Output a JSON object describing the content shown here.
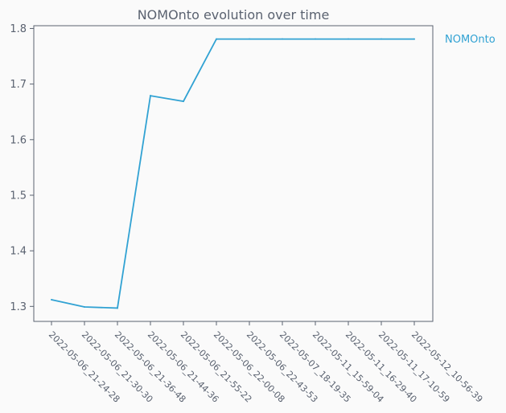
{
  "chart_data": {
    "type": "line",
    "title": "NOMOnto evolution over time",
    "xlabel": "",
    "ylabel": "",
    "categories": [
      "2022-05-06_21-24-28",
      "2022-05-06_21-30-30",
      "2022-05-06_21-36-48",
      "2022-05-06_21-44-36",
      "2022-05-06_21-55-22",
      "2022-05-06_22-00-08",
      "2022-05-06_22-43-53",
      "2022-05-07_18-19-35",
      "2022-05-11_15-59-04",
      "2022-05-11_16-29-40",
      "2022-05-11_17-10-59",
      "2022-05-12_10-56-39"
    ],
    "series": [
      {
        "name": "NOMOnto",
        "color": "#31a2d3",
        "values": [
          1.312,
          1.299,
          1.297,
          1.679,
          1.669,
          1.781,
          1.781,
          1.781,
          1.781,
          1.781,
          1.781,
          1.781
        ]
      }
    ],
    "yticks": [
      1.3,
      1.4,
      1.5,
      1.6,
      1.7,
      1.8
    ],
    "ylim": [
      1.273,
      1.805
    ],
    "grid": false,
    "legend": "right"
  }
}
